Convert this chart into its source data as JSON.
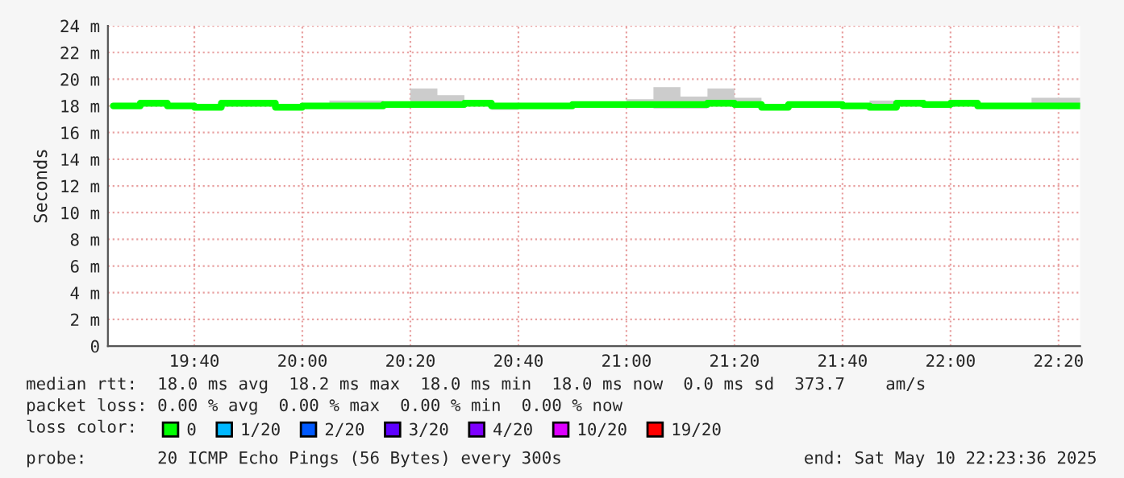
{
  "chart_data": {
    "type": "step",
    "ylabel": "Seconds",
    "x": [
      19.4167,
      19.5,
      19.5833,
      19.6667,
      19.75,
      19.8333,
      19.9167,
      20.0,
      20.0833,
      20.1667,
      20.25,
      20.3333,
      20.4167,
      20.5,
      20.5833,
      20.6667,
      20.75,
      20.8333,
      20.9167,
      21.0,
      21.0833,
      21.1667,
      21.25,
      21.3333,
      21.4167,
      21.5,
      21.5833,
      21.6667,
      21.75,
      21.8333,
      21.9167,
      22.0,
      22.0833,
      22.1667,
      22.25,
      22.3333
    ],
    "series": [
      {
        "name": "0",
        "color": "#00ff00",
        "values": [
          18.0,
          18.2,
          18.0,
          17.9,
          18.2,
          18.2,
          17.9,
          18.0,
          18.0,
          18.0,
          18.1,
          18.1,
          18.1,
          18.2,
          18.0,
          18.0,
          18.0,
          18.1,
          18.1,
          18.1,
          18.1,
          18.1,
          18.2,
          18.1,
          17.9,
          18.1,
          18.1,
          18.0,
          17.9,
          18.2,
          18.1,
          18.2,
          18.0,
          18.0,
          18.0,
          18.0
        ],
        "lower": [
          17.9,
          18.0,
          17.9,
          17.8,
          18.1,
          18.0,
          17.8,
          17.9,
          17.9,
          17.9,
          18.0,
          18.0,
          18.0,
          18.0,
          17.7,
          17.9,
          17.9,
          18.0,
          18.0,
          18.0,
          17.8,
          17.8,
          18.0,
          18.0,
          17.8,
          18.0,
          18.0,
          17.9,
          17.8,
          18.0,
          18.0,
          18.0,
          17.9,
          17.9,
          17.9,
          17.9
        ],
        "upper": [
          18.1,
          18.3,
          18.1,
          18.0,
          18.4,
          18.4,
          18.0,
          18.1,
          18.4,
          18.4,
          18.2,
          19.3,
          18.8,
          18.3,
          18.1,
          18.1,
          18.1,
          18.2,
          18.2,
          18.5,
          19.4,
          18.7,
          19.3,
          18.6,
          18.0,
          18.2,
          18.2,
          18.1,
          18.4,
          18.3,
          18.2,
          18.3,
          18.1,
          18.1,
          18.6,
          18.6
        ]
      },
      {
        "name": "1/20",
        "color": "#00b8ff",
        "values": [
          null,
          null,
          null,
          null,
          null,
          null,
          null,
          null,
          null,
          null,
          null,
          null,
          null,
          null,
          null,
          null,
          null,
          null,
          null,
          null,
          null,
          null,
          null,
          null,
          null,
          null,
          null,
          null,
          null,
          null,
          null,
          null,
          null,
          null,
          null,
          null
        ]
      },
      {
        "name": "2/20",
        "color": "#0059ff",
        "values": [
          null,
          null,
          null,
          null,
          null,
          null,
          null,
          null,
          null,
          null,
          null,
          null,
          null,
          null,
          null,
          null,
          null,
          null,
          null,
          null,
          null,
          null,
          null,
          null,
          null,
          null,
          null,
          null,
          null,
          null,
          null,
          null,
          null,
          null,
          null,
          null
        ]
      },
      {
        "name": "3/20",
        "color": "#5e00ff",
        "values": [
          null,
          null,
          null,
          null,
          null,
          null,
          null,
          null,
          null,
          null,
          null,
          null,
          null,
          null,
          null,
          null,
          null,
          null,
          null,
          null,
          null,
          null,
          null,
          null,
          null,
          null,
          null,
          null,
          null,
          null,
          null,
          null,
          null,
          null,
          null,
          null
        ]
      },
      {
        "name": "4/20",
        "color": "#7e00ff",
        "values": [
          null,
          null,
          null,
          null,
          null,
          null,
          null,
          null,
          null,
          null,
          null,
          null,
          null,
          null,
          null,
          null,
          null,
          null,
          null,
          null,
          null,
          null,
          null,
          null,
          null,
          null,
          null,
          null,
          null,
          null,
          null,
          null,
          null,
          null,
          null,
          null
        ]
      },
      {
        "name": "10/20",
        "color": "#dd00ff",
        "values": [
          null,
          null,
          null,
          null,
          null,
          null,
          null,
          null,
          null,
          null,
          null,
          null,
          null,
          null,
          null,
          null,
          null,
          null,
          null,
          null,
          null,
          null,
          null,
          null,
          null,
          null,
          null,
          null,
          null,
          null,
          null,
          null,
          null,
          null,
          null,
          null
        ]
      },
      {
        "name": "19/20",
        "color": "#ff0000",
        "values": [
          null,
          null,
          null,
          null,
          null,
          null,
          null,
          null,
          null,
          null,
          null,
          null,
          null,
          null,
          null,
          null,
          null,
          null,
          null,
          null,
          null,
          null,
          null,
          null,
          null,
          null,
          null,
          null,
          null,
          null,
          null,
          null,
          null,
          null,
          null,
          null
        ]
      }
    ],
    "xlim": [
      19.4,
      22.4
    ],
    "xticks": [
      {
        "value": 19.6667,
        "label": "19:40"
      },
      {
        "value": 20.0,
        "label": "20:00"
      },
      {
        "value": 20.3333,
        "label": "20:20"
      },
      {
        "value": 20.6667,
        "label": "20:40"
      },
      {
        "value": 21.0,
        "label": "21:00"
      },
      {
        "value": 21.3333,
        "label": "21:20"
      },
      {
        "value": 21.6667,
        "label": "21:40"
      },
      {
        "value": 22.0,
        "label": "22:00"
      },
      {
        "value": 22.3333,
        "label": "22:20"
      }
    ],
    "ylim": [
      0,
      24
    ],
    "yticks": [
      {
        "value": 0,
        "label": "0"
      },
      {
        "value": 2,
        "label": "2 m"
      },
      {
        "value": 4,
        "label": "4 m"
      },
      {
        "value": 6,
        "label": "6 m"
      },
      {
        "value": 8,
        "label": "8 m"
      },
      {
        "value": 10,
        "label": "10 m"
      },
      {
        "value": 12,
        "label": "12 m"
      },
      {
        "value": 14,
        "label": "14 m"
      },
      {
        "value": 16,
        "label": "16 m"
      },
      {
        "value": 18,
        "label": "18 m"
      },
      {
        "value": 20,
        "label": "20 m"
      },
      {
        "value": 22,
        "label": "22 m"
      },
      {
        "value": 24,
        "label": "24 m"
      }
    ],
    "grid": true,
    "legend": "bottom",
    "legend_title": "loss color:",
    "annotations": [
      "median rtt:  18.0 ms avg  18.2 ms max  18.0 ms min  18.0 ms now  0.0 ms sd  373.7    am/s",
      "packet loss: 0.00 % avg  0.00 % max  0.00 % min  0.00 % now",
      "probe:       20 ICMP Echo Pings (56 Bytes) every 300s",
      "end: Sat May 10 22:23:36 2025"
    ]
  }
}
